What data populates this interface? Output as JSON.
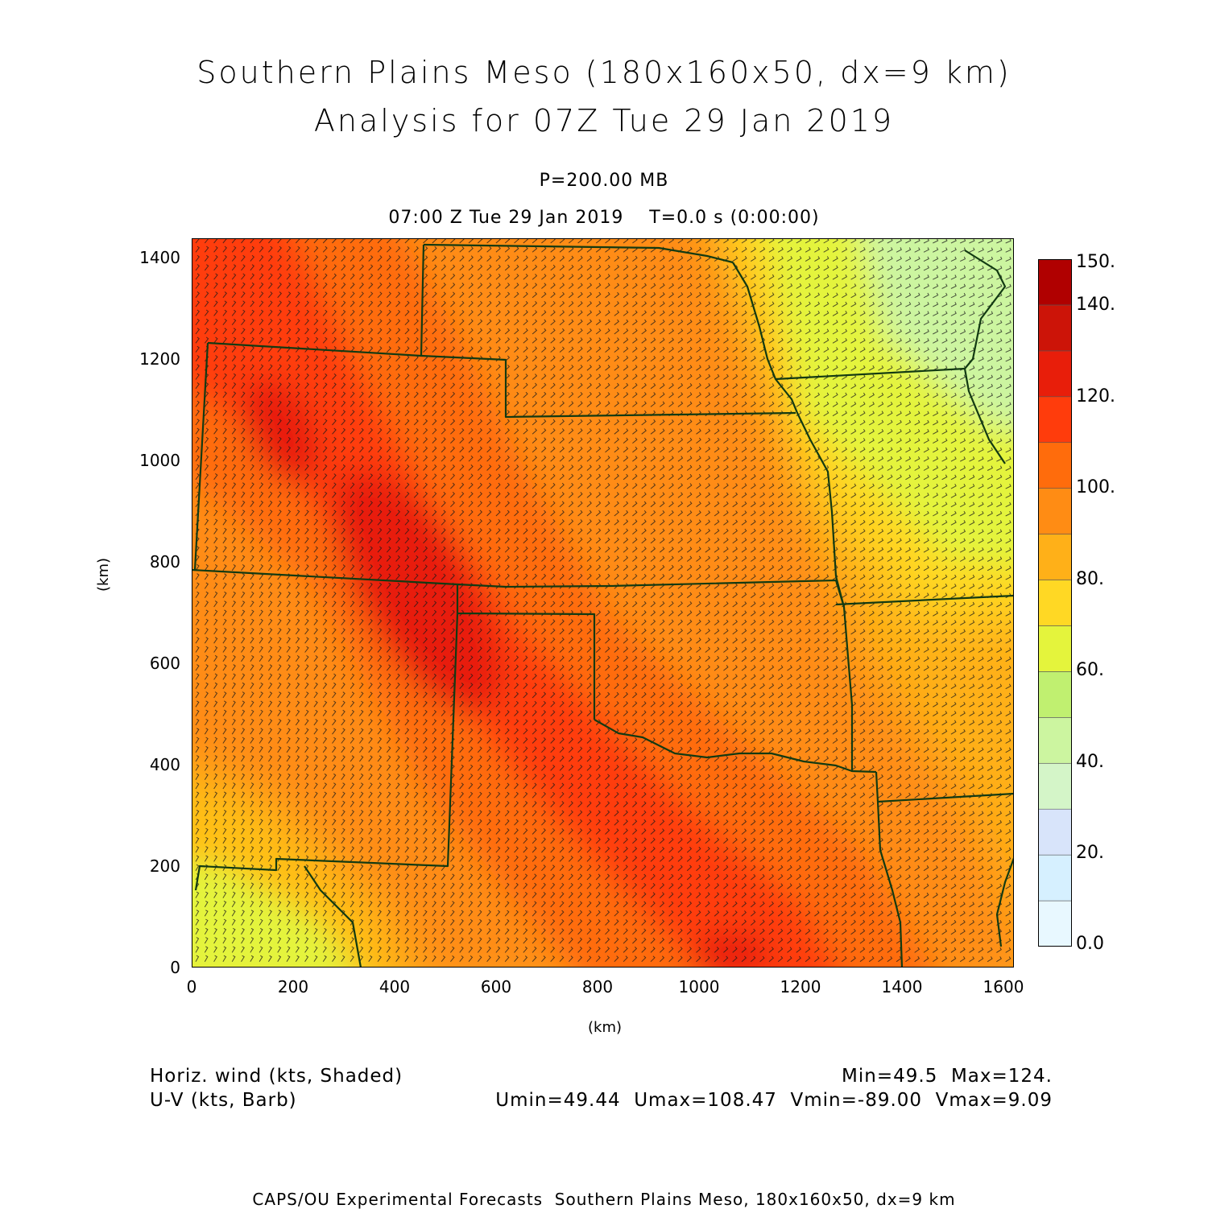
{
  "title": {
    "line1": "Southern Plains Meso (180x160x50, dx=9 km)",
    "line2": "Analysis for 07Z Tue 29 Jan 2019"
  },
  "subtitle": {
    "level": "P=200.00 MB",
    "time": "07:00 Z Tue 29 Jan 2019    T=0.0 s (0:00:00)"
  },
  "axes": {
    "xlabel": "(km)",
    "ylabel": "(km)",
    "xlim": [
      0,
      1620
    ],
    "ylim": [
      0,
      1440
    ],
    "xticks": [
      "0",
      "200",
      "400",
      "600",
      "800",
      "1000",
      "1200",
      "1400",
      "1600"
    ],
    "yticks": [
      "0",
      "200",
      "400",
      "600",
      "800",
      "1000",
      "1200",
      "1400"
    ]
  },
  "colorbar": {
    "labels": [
      "0.0",
      "20.",
      "40.",
      "60.",
      "80.",
      "100.",
      "120.",
      "140.",
      "150."
    ],
    "levels": [
      0,
      10,
      20,
      30,
      40,
      50,
      60,
      70,
      80,
      90,
      100,
      110,
      120,
      130,
      140,
      150
    ],
    "colors": [
      "#e8f8ff",
      "#d6f0ff",
      "#d8e4fa",
      "#d4f5c8",
      "#ccf5a0",
      "#c0f070",
      "#e4f43c",
      "#ffd824",
      "#ffb018",
      "#ff8c14",
      "#ff6c0c",
      "#ff3c0c",
      "#e81e0a",
      "#cc1408",
      "#b00000"
    ]
  },
  "legend": {
    "shaded": "Horiz. wind (kts, Shaded)",
    "barb": "U-V (kts, Barb)",
    "minmax": "Min=49.5  Max=124.",
    "uv_stats": "Umin=49.44  Umax=108.47  Vmin=-89.00  Vmax=9.09"
  },
  "credit": "CAPS/OU Experimental Forecasts  Southern Plains Meso, 180x160x50, dx=9 km",
  "colors": {
    "border": "#123a12",
    "barb": "#1a1a1a"
  }
}
